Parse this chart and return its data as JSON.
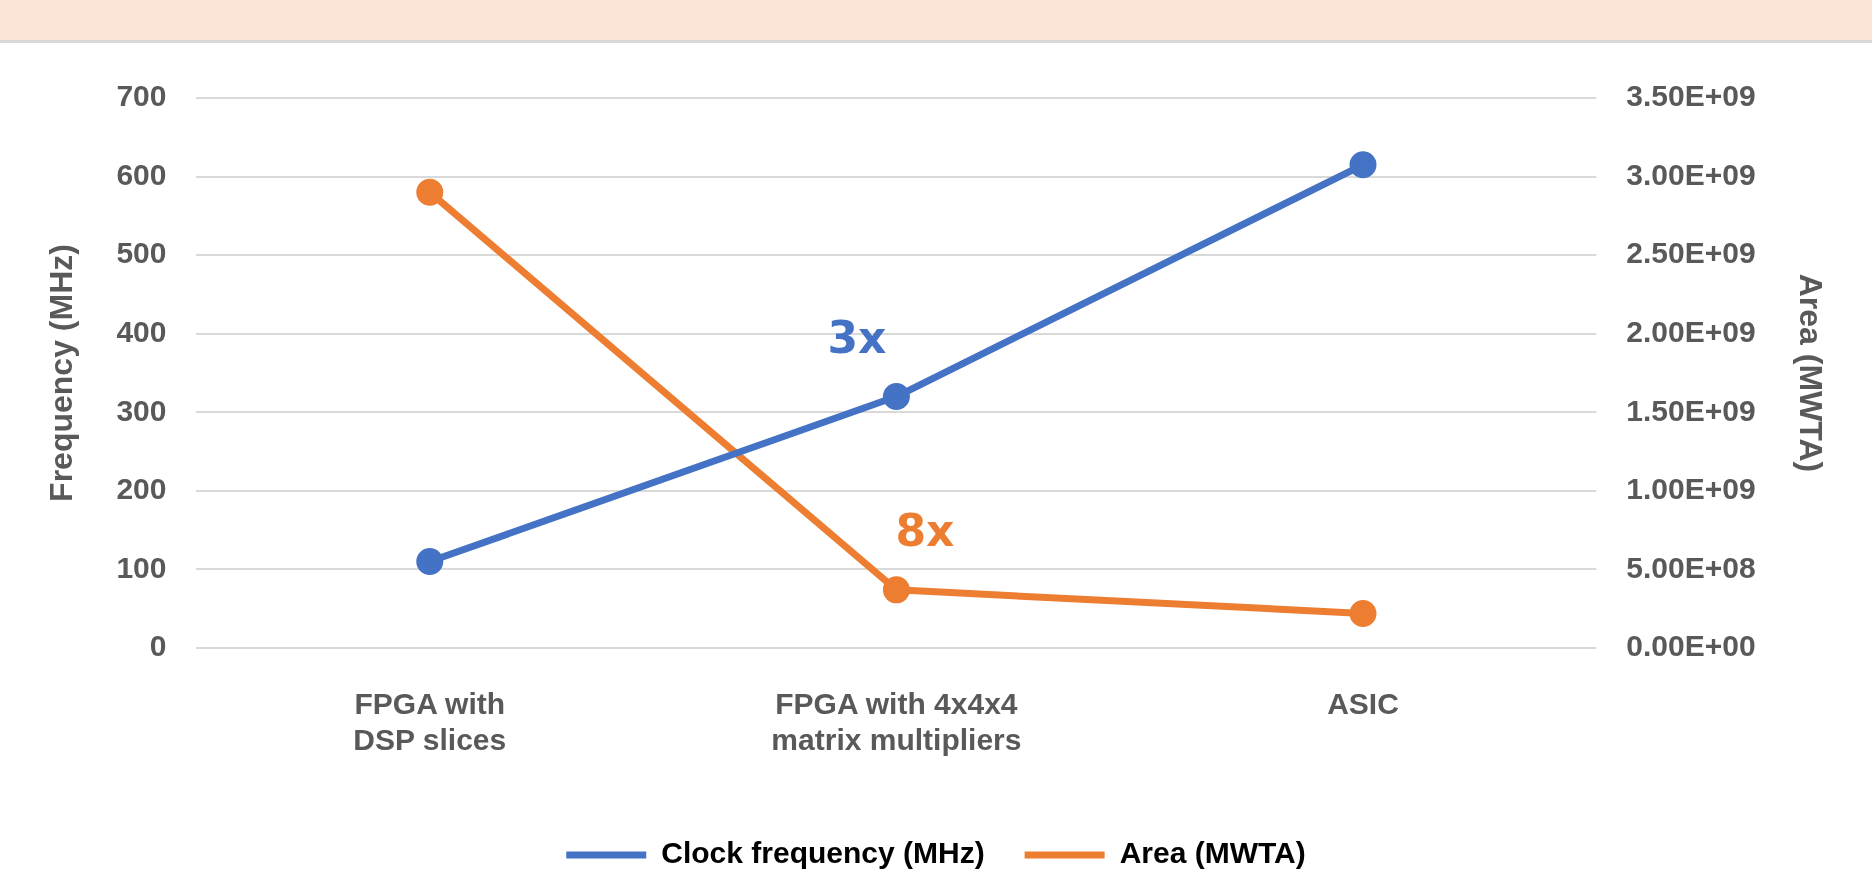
{
  "chart_data": {
    "type": "line",
    "ylabel": "Frequency (MHz)",
    "y2label": "Area (MWTA)",
    "categories": [
      "FPGA with DSP slices",
      "FPGA with 4x4x4 matrix multipliers",
      "ASIC"
    ],
    "series": [
      {
        "name": "Clock frequency (MHz)",
        "color": "#4472c4",
        "values": [
          110,
          320,
          615
        ]
      },
      {
        "name": "Area (MWTA)",
        "color": "#ed7d31",
        "axis": "y2",
        "values": [
          2900000000.0,
          370000000.0,
          220000000.0
        ]
      }
    ],
    "ylim": [
      0,
      700
    ],
    "yticks": [
      0,
      100,
      200,
      300,
      400,
      500,
      600,
      700
    ],
    "y2lim": [
      0,
      3500000000.0
    ],
    "y2ticks": [
      {
        "value": 0,
        "label": "0.00E+00"
      },
      {
        "value": 500000000.0,
        "label": "5.00E+08"
      },
      {
        "value": 1000000000.0,
        "label": "1.00E+09"
      },
      {
        "value": 1500000000.0,
        "label": "1.50E+09"
      },
      {
        "value": 2000000000.0,
        "label": "2.00E+09"
      },
      {
        "value": 2500000000.0,
        "label": "2.50E+09"
      },
      {
        "value": 3000000000.0,
        "label": "3.00E+09"
      },
      {
        "value": 3500000000.0,
        "label": "3.50E+09"
      }
    ],
    "annotations": [
      "3x",
      "8x"
    ],
    "grid": "y",
    "legend": "bottom",
    "marker": "circle",
    "line_style": "solid"
  }
}
